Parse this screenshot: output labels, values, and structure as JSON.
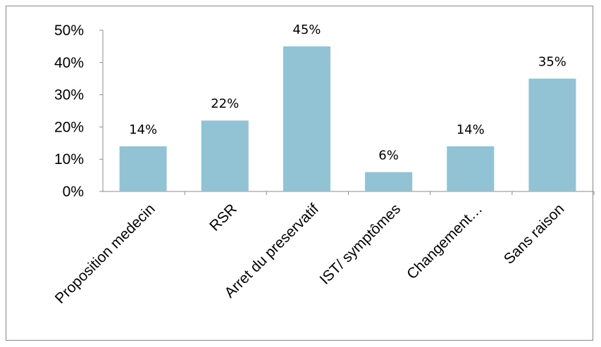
{
  "chart_data": {
    "type": "bar",
    "categories": [
      "Proposition medecin",
      "RSR",
      "Arret du preservatif",
      "IST/ symptômes",
      "Changement…",
      "Sans raison"
    ],
    "values": [
      14,
      22,
      45,
      6,
      14,
      35
    ],
    "data_labels": [
      "14%",
      "22%",
      "45%",
      "6%",
      "14%",
      "35%"
    ],
    "yticks": [
      "0%",
      "10%",
      "20%",
      "30%",
      "40%",
      "50%"
    ],
    "ylim": [
      0,
      50
    ],
    "grid": false,
    "legend": "none",
    "bar_color": "#92c3d4"
  }
}
